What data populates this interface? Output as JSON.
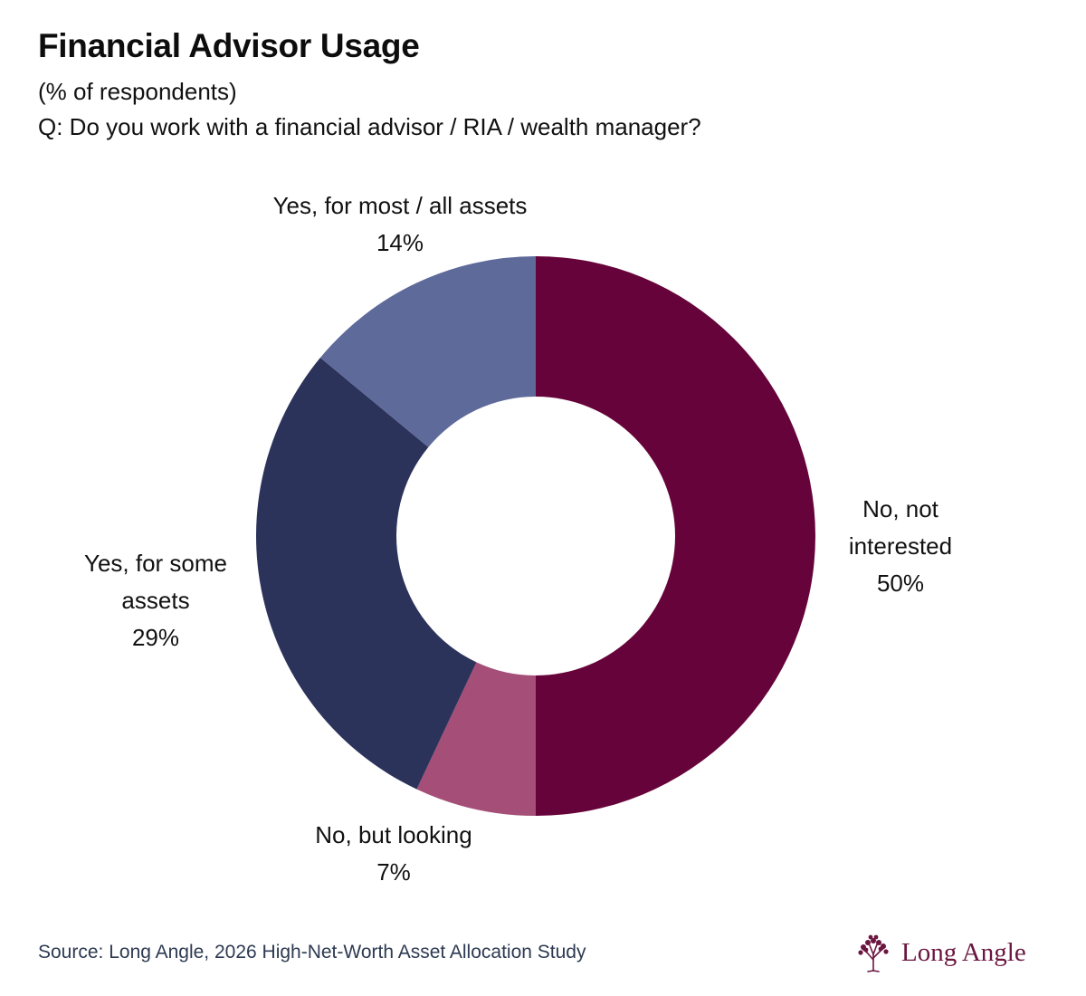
{
  "header": {
    "title": "Financial Advisor Usage",
    "subtitle": "(% of respondents)",
    "question": "Q: Do you work with a financial advisor / RIA / wealth manager?"
  },
  "chart_data": {
    "type": "pie",
    "variant": "donut",
    "title": "Financial Advisor Usage",
    "unit": "% of respondents",
    "slices": [
      {
        "label": "No, not interested",
        "value": 50,
        "display": "50%",
        "color": "#66033a"
      },
      {
        "label": "No, but looking",
        "value": 7,
        "display": "7%",
        "color": "#a44e78"
      },
      {
        "label": "Yes, for some assets",
        "value": 29,
        "display": "29%",
        "color": "#2b335b"
      },
      {
        "label": "Yes, for most / all assets",
        "value": 14,
        "display": "14%",
        "color": "#5e6a9a"
      }
    ],
    "label_lines": {
      "no_not_interested": [
        "No, not",
        "interested",
        "50%"
      ],
      "no_but_looking": [
        "No, but looking",
        "7%"
      ],
      "yes_some": [
        "Yes, for some",
        "assets",
        "29%"
      ],
      "yes_most": [
        "Yes, for most / all assets",
        "14%"
      ]
    }
  },
  "footer": {
    "source": "Source: Long Angle, 2026 High-Net-Worth Asset Allocation Study",
    "logo_text": "Long Angle",
    "logo_icon": "tree-icon",
    "logo_color": "#6b1640"
  }
}
